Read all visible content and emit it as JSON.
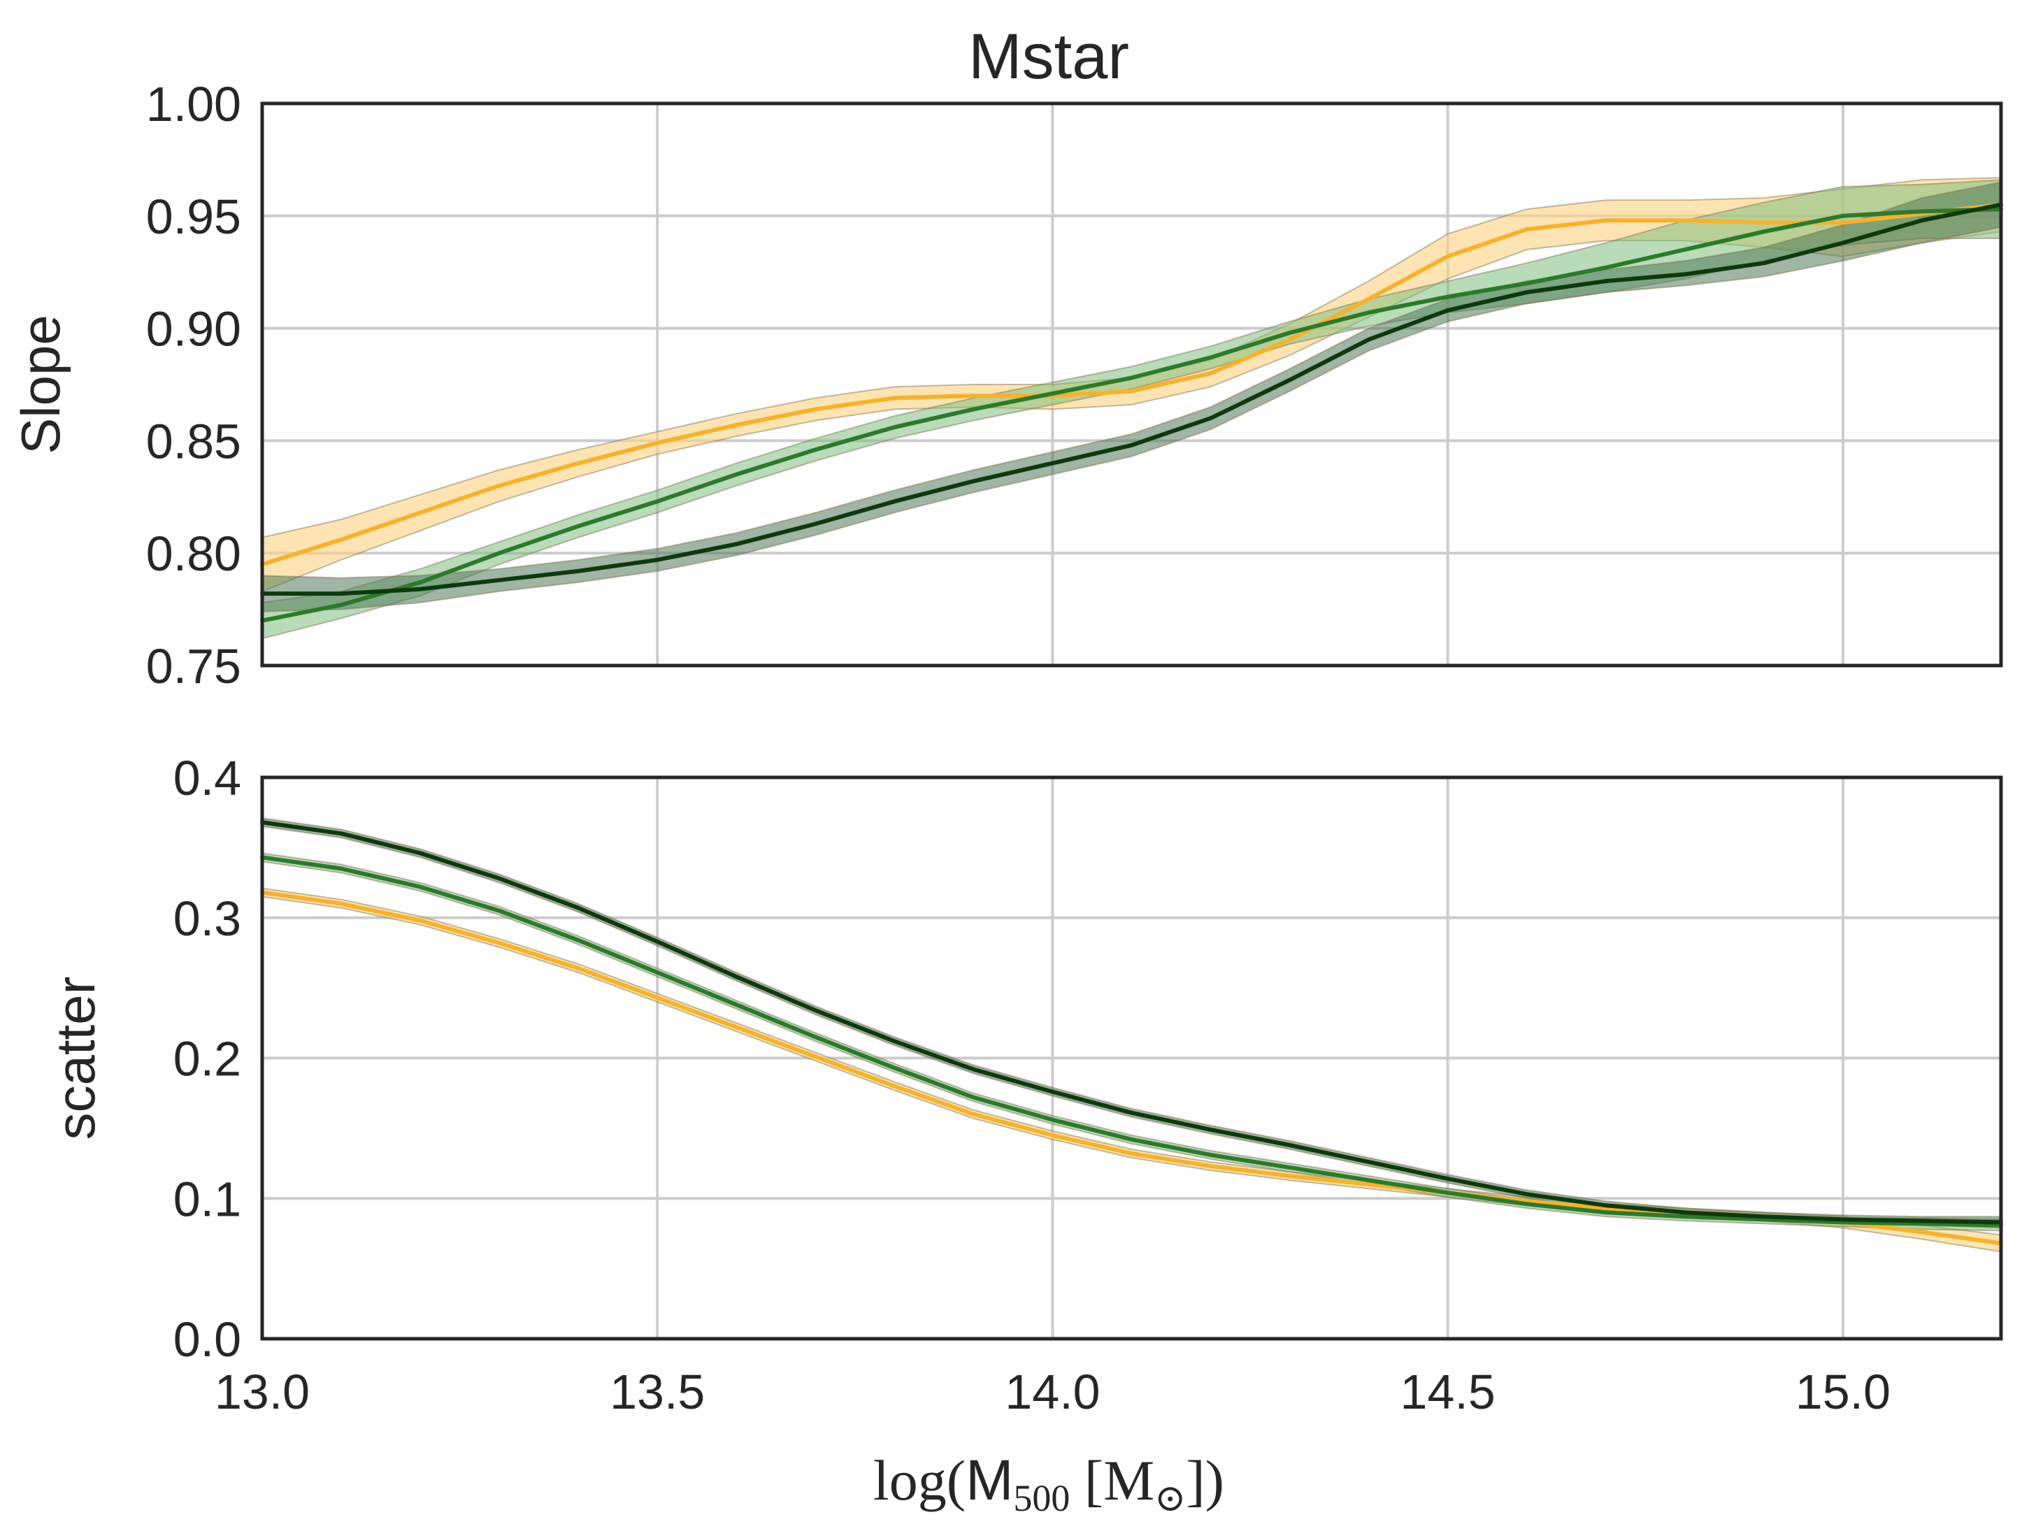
{
  "figure": {
    "title": "Mstar",
    "xlabel": {
      "prefix": "log(",
      "mass": "M",
      "mass_sub": "500",
      "mid": " [M",
      "sun_sub": "⊙",
      "suffix": "])"
    }
  },
  "colors": {
    "orange": "#f7b22a",
    "orange_band": "#fdd27e",
    "green": "#2a7a2a",
    "green_band": "#7dbd7d",
    "darkgreen": "#0d3a0d",
    "darkgreen_band": "#4f7a57"
  },
  "chart_data": [
    {
      "type": "line",
      "panel": "top",
      "title": "Mstar",
      "ylabel": "Slope",
      "xlim": [
        13.0,
        15.2
      ],
      "ylim": [
        0.75,
        1.0
      ],
      "xticks": [
        "13.0",
        "13.5",
        "14.0",
        "14.5",
        "15.0"
      ],
      "yticks": [
        "0.75",
        "0.80",
        "0.85",
        "0.90",
        "0.95",
        "1.00"
      ],
      "grid": true,
      "x": [
        13.0,
        13.1,
        13.2,
        13.3,
        13.4,
        13.5,
        13.6,
        13.7,
        13.8,
        13.9,
        14.0,
        14.1,
        14.2,
        14.3,
        14.4,
        14.5,
        14.6,
        14.7,
        14.8,
        14.9,
        15.0,
        15.1,
        15.2
      ],
      "series": [
        {
          "name": "orange",
          "color_key": "orange",
          "values": [
            0.795,
            0.806,
            0.818,
            0.83,
            0.84,
            0.849,
            0.857,
            0.864,
            0.869,
            0.87,
            0.87,
            0.872,
            0.88,
            0.895,
            0.913,
            0.932,
            0.944,
            0.948,
            0.948,
            0.947,
            0.947,
            0.951,
            0.955
          ],
          "lower": [
            0.783,
            0.797,
            0.81,
            0.823,
            0.834,
            0.844,
            0.852,
            0.859,
            0.864,
            0.865,
            0.864,
            0.866,
            0.874,
            0.888,
            0.905,
            0.922,
            0.935,
            0.939,
            0.939,
            0.936,
            0.932,
            0.938,
            0.943
          ],
          "upper": [
            0.807,
            0.815,
            0.826,
            0.837,
            0.846,
            0.854,
            0.862,
            0.869,
            0.874,
            0.875,
            0.875,
            0.878,
            0.886,
            0.902,
            0.921,
            0.942,
            0.953,
            0.957,
            0.957,
            0.958,
            0.962,
            0.966,
            0.967
          ]
        },
        {
          "name": "green",
          "color_key": "green",
          "values": [
            0.77,
            0.777,
            0.787,
            0.8,
            0.812,
            0.823,
            0.835,
            0.846,
            0.856,
            0.864,
            0.871,
            0.878,
            0.887,
            0.898,
            0.907,
            0.914,
            0.92,
            0.927,
            0.935,
            0.943,
            0.95,
            0.952,
            0.953
          ],
          "lower": [
            0.762,
            0.771,
            0.781,
            0.795,
            0.807,
            0.818,
            0.83,
            0.841,
            0.851,
            0.859,
            0.866,
            0.873,
            0.882,
            0.893,
            0.901,
            0.907,
            0.911,
            0.916,
            0.922,
            0.93,
            0.937,
            0.94,
            0.94
          ],
          "upper": [
            0.778,
            0.783,
            0.793,
            0.805,
            0.817,
            0.828,
            0.84,
            0.851,
            0.861,
            0.869,
            0.876,
            0.883,
            0.892,
            0.903,
            0.913,
            0.921,
            0.929,
            0.938,
            0.948,
            0.956,
            0.963,
            0.964,
            0.966
          ]
        },
        {
          "name": "darkgreen",
          "color_key": "darkgreen",
          "values": [
            0.782,
            0.782,
            0.784,
            0.788,
            0.792,
            0.797,
            0.804,
            0.813,
            0.823,
            0.832,
            0.84,
            0.848,
            0.86,
            0.877,
            0.895,
            0.908,
            0.916,
            0.921,
            0.924,
            0.929,
            0.938,
            0.948,
            0.955
          ],
          "lower": [
            0.774,
            0.775,
            0.778,
            0.783,
            0.787,
            0.792,
            0.799,
            0.808,
            0.818,
            0.827,
            0.835,
            0.843,
            0.855,
            0.872,
            0.89,
            0.903,
            0.911,
            0.916,
            0.919,
            0.923,
            0.93,
            0.938,
            0.945
          ],
          "upper": [
            0.79,
            0.789,
            0.79,
            0.793,
            0.797,
            0.802,
            0.809,
            0.818,
            0.828,
            0.837,
            0.845,
            0.853,
            0.865,
            0.882,
            0.9,
            0.913,
            0.921,
            0.926,
            0.93,
            0.936,
            0.946,
            0.958,
            0.965
          ]
        }
      ]
    },
    {
      "type": "line",
      "panel": "bottom",
      "title": "",
      "ylabel": "scatter",
      "xlim": [
        13.0,
        15.2
      ],
      "ylim": [
        0.0,
        0.4
      ],
      "xticks": [
        "13.0",
        "13.5",
        "14.0",
        "14.5",
        "15.0"
      ],
      "yticks": [
        "0.0",
        "0.1",
        "0.2",
        "0.3",
        "0.4"
      ],
      "grid": true,
      "x": [
        13.0,
        13.1,
        13.2,
        13.3,
        13.4,
        13.5,
        13.6,
        13.7,
        13.8,
        13.9,
        14.0,
        14.1,
        14.2,
        14.3,
        14.4,
        14.5,
        14.6,
        14.7,
        14.8,
        14.9,
        15.0,
        15.1,
        15.2
      ],
      "series": [
        {
          "name": "orange",
          "color_key": "orange",
          "values": [
            0.318,
            0.31,
            0.298,
            0.282,
            0.264,
            0.243,
            0.222,
            0.201,
            0.18,
            0.16,
            0.145,
            0.132,
            0.123,
            0.116,
            0.11,
            0.104,
            0.098,
            0.093,
            0.09,
            0.087,
            0.083,
            0.076,
            0.068
          ],
          "lower": [
            0.315,
            0.307,
            0.295,
            0.279,
            0.261,
            0.24,
            0.219,
            0.198,
            0.177,
            0.157,
            0.142,
            0.129,
            0.12,
            0.113,
            0.107,
            0.101,
            0.095,
            0.09,
            0.087,
            0.084,
            0.079,
            0.071,
            0.062
          ],
          "upper": [
            0.321,
            0.313,
            0.301,
            0.285,
            0.267,
            0.246,
            0.225,
            0.204,
            0.183,
            0.163,
            0.148,
            0.135,
            0.126,
            0.119,
            0.113,
            0.107,
            0.101,
            0.096,
            0.093,
            0.09,
            0.087,
            0.081,
            0.074
          ]
        },
        {
          "name": "green",
          "color_key": "green",
          "values": [
            0.343,
            0.335,
            0.322,
            0.305,
            0.284,
            0.261,
            0.238,
            0.215,
            0.193,
            0.172,
            0.156,
            0.142,
            0.131,
            0.122,
            0.113,
            0.104,
            0.096,
            0.09,
            0.087,
            0.085,
            0.083,
            0.082,
            0.081
          ],
          "lower": [
            0.34,
            0.332,
            0.319,
            0.302,
            0.281,
            0.258,
            0.235,
            0.212,
            0.19,
            0.169,
            0.153,
            0.139,
            0.128,
            0.119,
            0.11,
            0.101,
            0.093,
            0.087,
            0.084,
            0.082,
            0.08,
            0.078,
            0.077
          ],
          "upper": [
            0.346,
            0.338,
            0.325,
            0.308,
            0.287,
            0.264,
            0.241,
            0.218,
            0.196,
            0.175,
            0.159,
            0.145,
            0.134,
            0.125,
            0.116,
            0.107,
            0.099,
            0.093,
            0.09,
            0.088,
            0.086,
            0.086,
            0.085
          ]
        },
        {
          "name": "darkgreen",
          "color_key": "darkgreen",
          "values": [
            0.368,
            0.36,
            0.346,
            0.328,
            0.307,
            0.283,
            0.258,
            0.234,
            0.212,
            0.192,
            0.176,
            0.161,
            0.149,
            0.138,
            0.126,
            0.114,
            0.103,
            0.095,
            0.09,
            0.087,
            0.085,
            0.084,
            0.083
          ],
          "lower": [
            0.365,
            0.357,
            0.343,
            0.325,
            0.304,
            0.28,
            0.255,
            0.231,
            0.209,
            0.189,
            0.173,
            0.158,
            0.146,
            0.135,
            0.123,
            0.111,
            0.1,
            0.092,
            0.087,
            0.084,
            0.082,
            0.081,
            0.079
          ],
          "upper": [
            0.371,
            0.363,
            0.349,
            0.331,
            0.31,
            0.286,
            0.261,
            0.237,
            0.215,
            0.195,
            0.179,
            0.164,
            0.152,
            0.141,
            0.129,
            0.117,
            0.106,
            0.098,
            0.093,
            0.09,
            0.088,
            0.087,
            0.087
          ]
        }
      ]
    }
  ]
}
